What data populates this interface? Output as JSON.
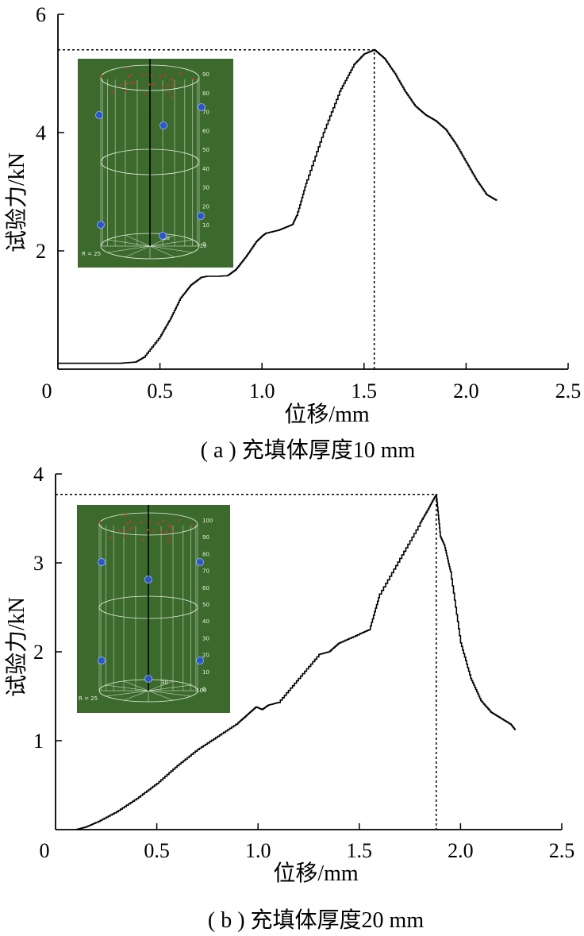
{
  "chart_data": [
    {
      "type": "line",
      "panel": "a",
      "caption": "( a ) 充填体厚度10 mm",
      "xlabel": "位移/mm",
      "ylabel": "试验力/kN",
      "xlim": [
        0,
        2.5
      ],
      "ylim": [
        0,
        6
      ],
      "xticks": [
        "0",
        "0.5",
        "1.0",
        "1.5",
        "2.0",
        "2.5"
      ],
      "yticks": [
        "2",
        "4",
        "6"
      ],
      "peak": {
        "x": 1.55,
        "y": 5.4
      },
      "series": [
        {
          "x": [
            0,
            0.1,
            0.2,
            0.3,
            0.38,
            0.42,
            0.5,
            0.55,
            0.6,
            0.65,
            0.7,
            0.73,
            0.78,
            0.83,
            0.87,
            0.92,
            0.97,
            1.0,
            1.02,
            1.08,
            1.15,
            1.17,
            1.22,
            1.3,
            1.38,
            1.45,
            1.5,
            1.55,
            1.6,
            1.65,
            1.7,
            1.75,
            1.8,
            1.85,
            1.9,
            1.95,
            2.0,
            2.05,
            2.1,
            2.15
          ],
          "y": [
            0.1,
            0.1,
            0.1,
            0.1,
            0.12,
            0.2,
            0.55,
            0.85,
            1.2,
            1.42,
            1.55,
            1.57,
            1.57,
            1.58,
            1.68,
            1.9,
            2.15,
            2.25,
            2.3,
            2.35,
            2.45,
            2.6,
            3.2,
            4.0,
            4.7,
            5.15,
            5.33,
            5.4,
            5.25,
            5.0,
            4.7,
            4.45,
            4.3,
            4.2,
            4.05,
            3.8,
            3.5,
            3.2,
            2.95,
            2.85
          ]
        }
      ]
    },
    {
      "type": "line",
      "panel": "b",
      "caption": "( b ) 充填体厚度20 mm",
      "xlabel": "位移/mm",
      "ylabel": "试验力/kN",
      "xlim": [
        0,
        2.5
      ],
      "ylim": [
        0,
        4
      ],
      "xticks": [
        "0",
        "0.5",
        "1.0",
        "1.5",
        "2.0",
        "2.5"
      ],
      "yticks": [
        "1",
        "2",
        "3",
        "4"
      ],
      "peak": {
        "x": 1.88,
        "y": 3.77
      },
      "series": [
        {
          "x": [
            0.1,
            0.15,
            0.2,
            0.3,
            0.4,
            0.5,
            0.6,
            0.7,
            0.8,
            0.9,
            0.95,
            0.99,
            1.02,
            1.05,
            1.1,
            1.2,
            1.3,
            1.35,
            1.4,
            1.5,
            1.55,
            1.6,
            1.7,
            1.8,
            1.85,
            1.88,
            1.9,
            1.92,
            1.95,
            2.0,
            2.05,
            2.1,
            2.15,
            2.2,
            2.25,
            2.27
          ],
          "y": [
            0.0,
            0.03,
            0.08,
            0.2,
            0.35,
            0.52,
            0.72,
            0.9,
            1.05,
            1.2,
            1.3,
            1.38,
            1.35,
            1.4,
            1.43,
            1.7,
            1.97,
            2.0,
            2.1,
            2.2,
            2.25,
            2.65,
            3.05,
            3.45,
            3.65,
            3.77,
            3.3,
            3.2,
            2.9,
            2.1,
            1.7,
            1.45,
            1.32,
            1.25,
            1.18,
            1.12
          ]
        }
      ]
    }
  ],
  "insets": [
    {
      "numbers": [
        "90",
        "80",
        "70",
        "60",
        "50",
        "40",
        "30",
        "20",
        "10",
        "0",
        "R = 25",
        "30",
        "-10"
      ]
    },
    {
      "numbers": [
        "100",
        "90",
        "80",
        "70",
        "60",
        "50",
        "40",
        "30",
        "20",
        "10",
        "0",
        "R = 25",
        "30",
        "100"
      ]
    }
  ],
  "colors": {
    "line": "#000000",
    "inset_bg": "#3b6a2c",
    "inset_grid": "#e8efe2",
    "inset_dot": "#2c57c9",
    "inset_red": "#c8372d"
  }
}
